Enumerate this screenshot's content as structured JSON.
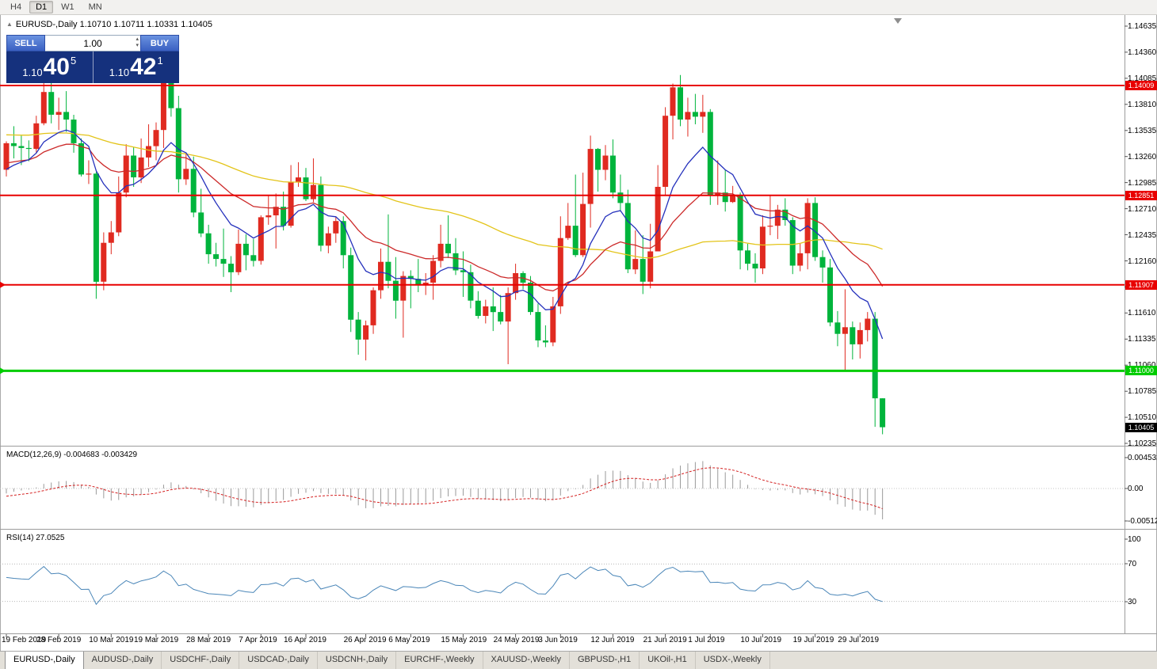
{
  "toolbar": {
    "timeframes": [
      "H4",
      "D1",
      "W1",
      "MN"
    ],
    "active_timeframe": "D1"
  },
  "chart_header": {
    "title_text": "EURUSD-,Daily  1.10710 1.10711 1.10331 1.10405"
  },
  "icons": {
    "collapse_arrow": "▲",
    "spinner_up": "▴",
    "spinner_down": "▾"
  },
  "trade_panel": {
    "sell_label": "SELL",
    "buy_label": "BUY",
    "volume": "1.00",
    "sell_price": {
      "prefix": "1.10",
      "big": "40",
      "sup": "5"
    },
    "buy_price": {
      "prefix": "1.10",
      "big": "42",
      "sup": "1"
    }
  },
  "price_scale": {
    "labels": [
      "1.14635",
      "1.14360",
      "1.14085",
      "1.13810",
      "1.13535",
      "1.13260",
      "1.12985",
      "1.12710",
      "1.12435",
      "1.12160",
      "1.11885",
      "1.11610",
      "1.11335",
      "1.11060",
      "1.10785",
      "1.10510",
      "1.10235"
    ]
  },
  "indicators": {
    "macd": {
      "label": "MACD(12,26,9) -0.004683 -0.003429",
      "params": {
        "fast": 12,
        "slow": 26,
        "signal": 9
      },
      "scale_labels": [
        "0.004532",
        "0.00",
        "-0.005122"
      ],
      "histogram_color": "#9a9a9a",
      "signal_color": "#d42020"
    },
    "rsi": {
      "label": "RSI(14) 27.0525",
      "period": 14,
      "value": 27.0525,
      "scale_labels": [
        "100",
        "70",
        "30"
      ],
      "levels": [
        70,
        30
      ],
      "line_color": "#4a86b8"
    }
  },
  "time_axis": {
    "labels": [
      {
        "text": "19 Feb 2019",
        "candle_index": 0
      },
      {
        "text": "28 Feb 2019",
        "candle_index": 7
      },
      {
        "text": "10 Mar 2019",
        "candle_index": 14
      },
      {
        "text": "19 Mar 2019",
        "candle_index": 20
      },
      {
        "text": "28 Mar 2019",
        "candle_index": 27
      },
      {
        "text": "7 Apr 2019",
        "candle_index": 34
      },
      {
        "text": "16 Apr 2019",
        "candle_index": 40
      },
      {
        "text": "26 Apr 2019",
        "candle_index": 48
      },
      {
        "text": "6 May 2019",
        "candle_index": 54
      },
      {
        "text": "15 May 2019",
        "candle_index": 61
      },
      {
        "text": "24 May 2019",
        "candle_index": 68
      },
      {
        "text": "3 Jun 2019",
        "candle_index": 74
      },
      {
        "text": "12 Jun 2019",
        "candle_index": 81
      },
      {
        "text": "21 Jun 2019",
        "candle_index": 88
      },
      {
        "text": "1 Jul 2019",
        "candle_index": 94
      },
      {
        "text": "10 Jul 2019",
        "candle_index": 101
      },
      {
        "text": "19 Jul 2019",
        "candle_index": 108
      },
      {
        "text": "29 Jul 2019",
        "candle_index": 114
      }
    ]
  },
  "tab_bar": {
    "tabs": [
      {
        "label": "EURUSD-,Daily",
        "active": true
      },
      {
        "label": "AUDUSD-,Daily",
        "active": false
      },
      {
        "label": "USDCHF-,Daily",
        "active": false
      },
      {
        "label": "USDCAD-,Daily",
        "active": false
      },
      {
        "label": "USDCNH-,Daily",
        "active": false
      },
      {
        "label": "EURCHF-,Weekly",
        "active": false
      },
      {
        "label": "XAUUSD-,Weekly",
        "active": false
      },
      {
        "label": "GBPUSD-,H1",
        "active": false
      },
      {
        "label": "UKOil-,H1",
        "active": false
      },
      {
        "label": "USDX-,Weekly",
        "active": false
      }
    ]
  },
  "chart_data": {
    "type": "candlestick",
    "symbol": "EURUSD-",
    "timeframe": "Daily",
    "ohlc_current": {
      "open": 1.1071,
      "high": 1.10711,
      "low": 1.10331,
      "close": 1.10405
    },
    "up_color": "#e02a20",
    "down_color": "#00b43c",
    "candles": [
      [
        1.1312,
        1.1342,
        1.1305,
        1.134
      ],
      [
        1.134,
        1.1358,
        1.1324,
        1.1337
      ],
      [
        1.1337,
        1.1348,
        1.1317,
        1.1335
      ],
      [
        1.1335,
        1.1343,
        1.1321,
        1.1334
      ],
      [
        1.1334,
        1.1369,
        1.133,
        1.1361
      ],
      [
        1.1361,
        1.1404,
        1.1359,
        1.1394
      ],
      [
        1.1394,
        1.1408,
        1.1361,
        1.137
      ],
      [
        1.137,
        1.1388,
        1.1354,
        1.1373
      ],
      [
        1.1373,
        1.1395,
        1.1352,
        1.1365
      ],
      [
        1.1365,
        1.137,
        1.133,
        1.134
      ],
      [
        1.134,
        1.1345,
        1.1305,
        1.1307
      ],
      [
        1.1307,
        1.1322,
        1.1297,
        1.1308
      ],
      [
        1.1308,
        1.131,
        1.1176,
        1.1194
      ],
      [
        1.1194,
        1.1246,
        1.1185,
        1.1235
      ],
      [
        1.1235,
        1.1258,
        1.1223,
        1.1246
      ],
      [
        1.1246,
        1.1305,
        1.1242,
        1.1288
      ],
      [
        1.1288,
        1.1339,
        1.1283,
        1.1327
      ],
      [
        1.1327,
        1.1336,
        1.1294,
        1.1304
      ],
      [
        1.1304,
        1.1345,
        1.1298,
        1.1325
      ],
      [
        1.1325,
        1.136,
        1.1315,
        1.1337
      ],
      [
        1.1337,
        1.1362,
        1.1322,
        1.1354
      ],
      [
        1.1354,
        1.141,
        1.1335,
        1.1405
      ],
      [
        1.1405,
        1.1412,
        1.1368,
        1.1377
      ],
      [
        1.1377,
        1.139,
        1.1288,
        1.1302
      ],
      [
        1.1302,
        1.133,
        1.1296,
        1.1313
      ],
      [
        1.1313,
        1.1326,
        1.1262,
        1.1267
      ],
      [
        1.1267,
        1.1292,
        1.1241,
        1.1245
      ],
      [
        1.1245,
        1.1254,
        1.1213,
        1.1223
      ],
      [
        1.1223,
        1.1235,
        1.121,
        1.1218
      ],
      [
        1.1218,
        1.125,
        1.1199,
        1.1213
      ],
      [
        1.1213,
        1.1221,
        1.1183,
        1.1204
      ],
      [
        1.1204,
        1.1249,
        1.1201,
        1.1234
      ],
      [
        1.1234,
        1.1244,
        1.1206,
        1.1222
      ],
      [
        1.1222,
        1.1239,
        1.121,
        1.1216
      ],
      [
        1.1216,
        1.1264,
        1.1212,
        1.1262
      ],
      [
        1.1262,
        1.1285,
        1.1254,
        1.1264
      ],
      [
        1.1264,
        1.1287,
        1.1229,
        1.1273
      ],
      [
        1.1273,
        1.1289,
        1.1248,
        1.1253
      ],
      [
        1.1253,
        1.1317,
        1.1251,
        1.1299
      ],
      [
        1.1299,
        1.132,
        1.1294,
        1.1304
      ],
      [
        1.1304,
        1.1314,
        1.1279,
        1.1281
      ],
      [
        1.1281,
        1.1324,
        1.1278,
        1.1296
      ],
      [
        1.1296,
        1.1305,
        1.1226,
        1.1232
      ],
      [
        1.1232,
        1.1252,
        1.1224,
        1.1245
      ],
      [
        1.1245,
        1.1262,
        1.1235,
        1.1258
      ],
      [
        1.1258,
        1.1263,
        1.1208,
        1.1222
      ],
      [
        1.1222,
        1.123,
        1.1141,
        1.1154
      ],
      [
        1.1154,
        1.1162,
        1.1117,
        1.1133
      ],
      [
        1.1133,
        1.1153,
        1.1111,
        1.1148
      ],
      [
        1.1148,
        1.1188,
        1.1139,
        1.1185
      ],
      [
        1.1185,
        1.1229,
        1.1176,
        1.1215
      ],
      [
        1.1215,
        1.1265,
        1.1187,
        1.1195
      ],
      [
        1.1195,
        1.122,
        1.1155,
        1.1174
      ],
      [
        1.1174,
        1.1205,
        1.1135,
        1.12
      ],
      [
        1.12,
        1.1206,
        1.1166,
        1.1197
      ],
      [
        1.1197,
        1.1218,
        1.1183,
        1.119
      ],
      [
        1.119,
        1.1203,
        1.118,
        1.1193
      ],
      [
        1.1193,
        1.1222,
        1.1175,
        1.1216
      ],
      [
        1.1216,
        1.1254,
        1.1209,
        1.1234
      ],
      [
        1.1234,
        1.1264,
        1.1219,
        1.1224
      ],
      [
        1.1224,
        1.124,
        1.1201,
        1.1206
      ],
      [
        1.1206,
        1.1226,
        1.1178,
        1.1204
      ],
      [
        1.1204,
        1.1212,
        1.1166,
        1.1174
      ],
      [
        1.1174,
        1.1184,
        1.1155,
        1.1158
      ],
      [
        1.1158,
        1.1175,
        1.115,
        1.1168
      ],
      [
        1.1168,
        1.1188,
        1.1142,
        1.1162
      ],
      [
        1.1162,
        1.118,
        1.1149,
        1.1152
      ],
      [
        1.1152,
        1.1188,
        1.1107,
        1.1182
      ],
      [
        1.1182,
        1.1213,
        1.1175,
        1.1203
      ],
      [
        1.1203,
        1.1205,
        1.1186,
        1.1193
      ],
      [
        1.1193,
        1.12,
        1.1159,
        1.1162
      ],
      [
        1.1162,
        1.1171,
        1.1125,
        1.1132
      ],
      [
        1.1132,
        1.1148,
        1.1125,
        1.113
      ],
      [
        1.113,
        1.1178,
        1.1126,
        1.1168
      ],
      [
        1.1168,
        1.1263,
        1.116,
        1.124
      ],
      [
        1.124,
        1.1277,
        1.1238,
        1.1253
      ],
      [
        1.1253,
        1.1307,
        1.122,
        1.1222
      ],
      [
        1.1222,
        1.1309,
        1.122,
        1.1276
      ],
      [
        1.1276,
        1.1348,
        1.1251,
        1.1334
      ],
      [
        1.1334,
        1.1335,
        1.1289,
        1.1312
      ],
      [
        1.1312,
        1.1338,
        1.1301,
        1.1327
      ],
      [
        1.1327,
        1.1344,
        1.1282,
        1.1288
      ],
      [
        1.1288,
        1.1307,
        1.1268,
        1.1277
      ],
      [
        1.1277,
        1.1291,
        1.1203,
        1.1207
      ],
      [
        1.1207,
        1.1248,
        1.1202,
        1.1218
      ],
      [
        1.1218,
        1.1243,
        1.1181,
        1.1194
      ],
      [
        1.1194,
        1.1255,
        1.1187,
        1.1226
      ],
      [
        1.1226,
        1.1317,
        1.1226,
        1.1294
      ],
      [
        1.1294,
        1.1378,
        1.1285,
        1.1369
      ],
      [
        1.1369,
        1.1403,
        1.1344,
        1.1399
      ],
      [
        1.1399,
        1.1412,
        1.1358,
        1.1365
      ],
      [
        1.1365,
        1.1388,
        1.1347,
        1.1373
      ],
      [
        1.1373,
        1.1392,
        1.136,
        1.1368
      ],
      [
        1.1368,
        1.1391,
        1.1351,
        1.1373
      ],
      [
        1.1373,
        1.1376,
        1.1275,
        1.1285
      ],
      [
        1.1285,
        1.1322,
        1.1275,
        1.1288
      ],
      [
        1.1288,
        1.1312,
        1.1268,
        1.1278
      ],
      [
        1.1278,
        1.1295,
        1.1277,
        1.1285
      ],
      [
        1.1285,
        1.1288,
        1.1207,
        1.1227
      ],
      [
        1.1227,
        1.1234,
        1.1206,
        1.1213
      ],
      [
        1.1213,
        1.1224,
        1.1193,
        1.1208
      ],
      [
        1.1208,
        1.1264,
        1.1202,
        1.1252
      ],
      [
        1.1252,
        1.1285,
        1.1243,
        1.1253
      ],
      [
        1.1253,
        1.1275,
        1.1239,
        1.127
      ],
      [
        1.127,
        1.1282,
        1.1253,
        1.1259
      ],
      [
        1.1259,
        1.1262,
        1.1202,
        1.1211
      ],
      [
        1.1211,
        1.1234,
        1.1205,
        1.1224
      ],
      [
        1.1224,
        1.1282,
        1.1207,
        1.1277
      ],
      [
        1.1277,
        1.1283,
        1.1216,
        1.122
      ],
      [
        1.122,
        1.1227,
        1.1193,
        1.1209
      ],
      [
        1.1209,
        1.1218,
        1.1147,
        1.1151
      ],
      [
        1.1151,
        1.1163,
        1.1126,
        1.1139
      ],
      [
        1.1139,
        1.1186,
        1.1101,
        1.1146
      ],
      [
        1.1146,
        1.1152,
        1.1112,
        1.1128
      ],
      [
        1.1128,
        1.1151,
        1.1113,
        1.1143
      ],
      [
        1.1143,
        1.1162,
        1.1131,
        1.1155
      ],
      [
        1.1155,
        1.1162,
        1.1041,
        1.1071
      ],
      [
        1.1071,
        1.10711,
        1.10331,
        1.10405
      ]
    ],
    "prehistory_closes": [
      1.134,
      1.1352,
      1.1345,
      1.133,
      1.1318,
      1.1332,
      1.1347,
      1.136,
      1.1372,
      1.138,
      1.137,
      1.1355,
      1.1362,
      1.1378,
      1.139,
      1.1402,
      1.1395,
      1.1408,
      1.142,
      1.1435,
      1.141,
      1.1425,
      1.14,
      1.1385,
      1.1372,
      1.1358,
      1.1345,
      1.1355,
      1.137,
      1.1388,
      1.1405,
      1.142,
      1.1408,
      1.139,
      1.1375,
      1.136,
      1.1348,
      1.1332,
      1.1318,
      1.1305,
      1.1332,
      1.1318,
      1.1305,
      1.1295,
      1.1282,
      1.127,
      1.1262,
      1.1275,
      1.129,
      1.1305,
      1.1318,
      1.133,
      1.1342,
      1.1332,
      1.132,
      1.1308,
      1.1298,
      1.1288,
      1.1295,
      1.131
    ],
    "moving_averages": [
      {
        "type": "sma",
        "period": 60,
        "color": "#e3c419"
      },
      {
        "type": "ema",
        "period": 25,
        "color": "#cc2a2a"
      },
      {
        "type": "ema",
        "period": 10,
        "color": "#2430bc"
      }
    ],
    "hlines": [
      {
        "price": 1.14009,
        "color": "#e80000",
        "width": 2,
        "tag": "1.14009",
        "left_marker": false
      },
      {
        "price": 1.12851,
        "color": "#e80000",
        "width": 2,
        "tag": "1.12851",
        "left_marker": false
      },
      {
        "price": 1.11907,
        "color": "#e80000",
        "width": 2,
        "tag": "1.11907",
        "left_marker": true
      },
      {
        "price": 1.11,
        "color": "#00cc00",
        "width": 3,
        "tag": "1.11000",
        "left_marker": true
      }
    ],
    "current_price_tag": {
      "text": "1.10405",
      "bg": "#000000",
      "fg": "#ffffff"
    },
    "price_axis": {
      "top_label_price": 1.14635,
      "label_step": 0.00275,
      "labels_count": 17
    }
  }
}
